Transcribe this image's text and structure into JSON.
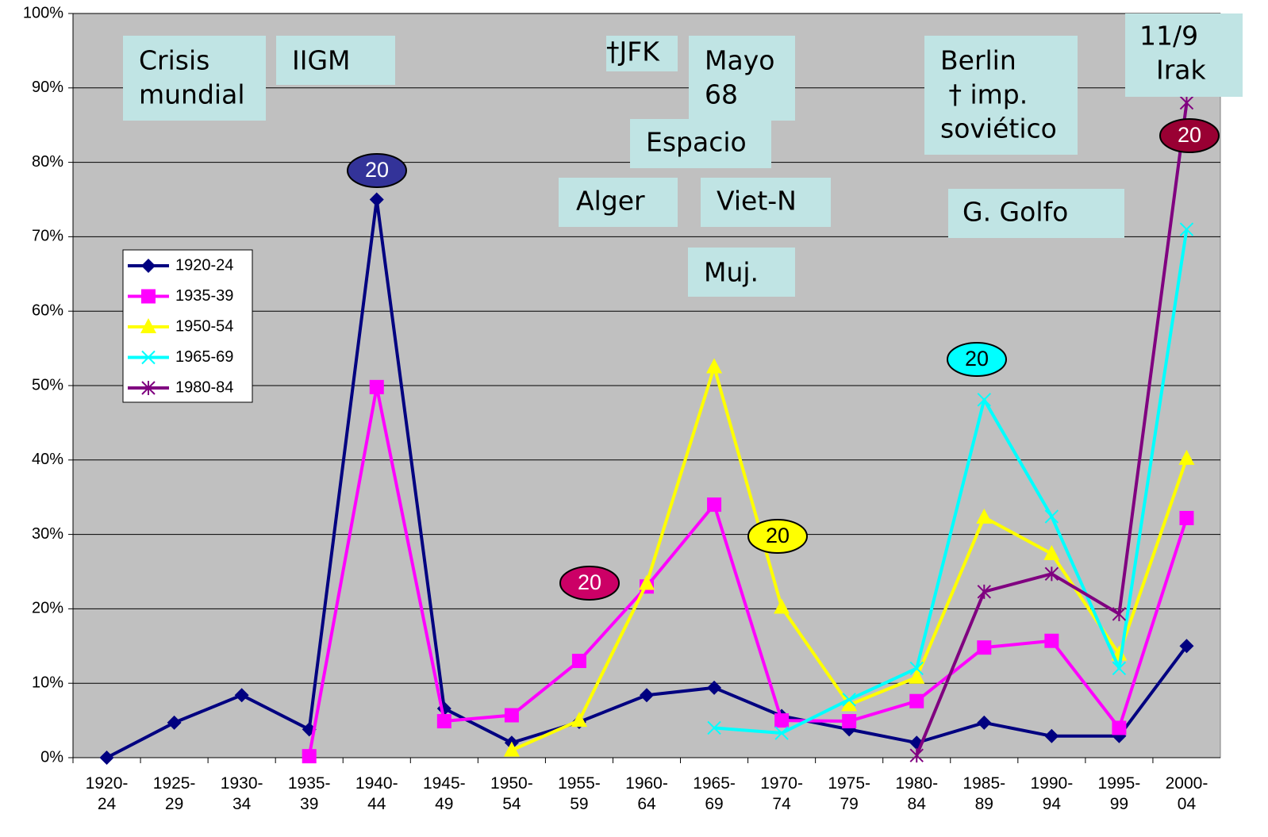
{
  "chart_data": {
    "type": "line",
    "categories": [
      "1920-24",
      "1925-29",
      "1930-34",
      "1935-39",
      "1940-44",
      "1945-49",
      "1950-54",
      "1955-59",
      "1960-64",
      "1965-69",
      "1970-74",
      "1975-79",
      "1980-84",
      "1985-89",
      "1990-94",
      "1995-99",
      "2000-04"
    ],
    "series": [
      {
        "name": "1920-24",
        "color": "#000080",
        "marker": "diamond",
        "values": [
          0,
          4.7,
          8.4,
          3.8,
          75,
          6.6,
          2,
          4.8,
          8.4,
          9.4,
          5.6,
          3.8,
          2,
          4.7,
          2.9,
          2.9,
          15
        ]
      },
      {
        "name": "1935-39",
        "color": "#ff00ff",
        "marker": "square",
        "values": [
          null,
          null,
          null,
          0.2,
          49.8,
          4.9,
          5.7,
          13,
          23,
          34,
          5,
          4.9,
          7.6,
          14.8,
          15.7,
          4,
          32.2
        ]
      },
      {
        "name": "1950-54",
        "color": "#ffff00",
        "marker": "triangle",
        "values": [
          null,
          null,
          null,
          null,
          null,
          null,
          1,
          5,
          23.4,
          52.5,
          20.2,
          7.1,
          10.8,
          32.3,
          27.4,
          13.9,
          40.2
        ]
      },
      {
        "name": "1965-69",
        "color": "#00ffff",
        "marker": "x",
        "values": [
          null,
          null,
          null,
          null,
          null,
          null,
          null,
          null,
          null,
          4,
          3.3,
          7.8,
          12,
          48.1,
          32.4,
          12,
          71
        ]
      },
      {
        "name": "1980-84",
        "color": "#800080",
        "marker": "star",
        "values": [
          null,
          null,
          null,
          null,
          null,
          null,
          null,
          null,
          null,
          null,
          null,
          null,
          0.3,
          22.3,
          24.7,
          19.3,
          88
        ]
      }
    ],
    "ylim": [
      0,
      100
    ],
    "yticks": [
      {
        "value": 0,
        "label": "0%"
      },
      {
        "value": 10,
        "label": "10%"
      },
      {
        "value": 20,
        "label": "20%"
      },
      {
        "value": 30,
        "label": "30%"
      },
      {
        "value": 40,
        "label": "40%"
      },
      {
        "value": 50,
        "label": "50%"
      },
      {
        "value": 60,
        "label": "60%"
      },
      {
        "value": 70,
        "label": "70%"
      },
      {
        "value": 80,
        "label": "80%"
      },
      {
        "value": 90,
        "label": "90%"
      },
      {
        "value": 100,
        "label": "100%"
      }
    ],
    "grid": true,
    "legend": "left",
    "annotations": [
      {
        "lines": [
          "Crisis",
          "mundial"
        ]
      },
      {
        "lines": [
          "IIGM"
        ]
      },
      {
        "lines": [
          "†JFK"
        ]
      },
      {
        "lines": [
          "Mayo",
          "68"
        ]
      },
      {
        "lines": [
          "Espacio"
        ]
      },
      {
        "lines": [
          "Alger"
        ]
      },
      {
        "lines": [
          "Viet-N"
        ]
      },
      {
        "lines": [
          "Muj."
        ]
      },
      {
        "lines": [
          "Berlin",
          " † imp.",
          "soviético"
        ]
      },
      {
        "lines": [
          "G. Golfo"
        ]
      },
      {
        "lines": [
          "11/9",
          "  Irak"
        ]
      }
    ],
    "badges": [
      {
        "label": "20",
        "color": "#333399",
        "text_color": "#ffffff"
      },
      {
        "label": "20",
        "color": "#cc0066",
        "text_color": "#ffffff"
      },
      {
        "label": "20",
        "color": "#ffff00",
        "text_color": "#000000"
      },
      {
        "label": "20",
        "color": "#00ffff",
        "text_color": "#000000"
      },
      {
        "label": "20",
        "color": "#990033",
        "text_color": "#ffffff"
      }
    ]
  }
}
